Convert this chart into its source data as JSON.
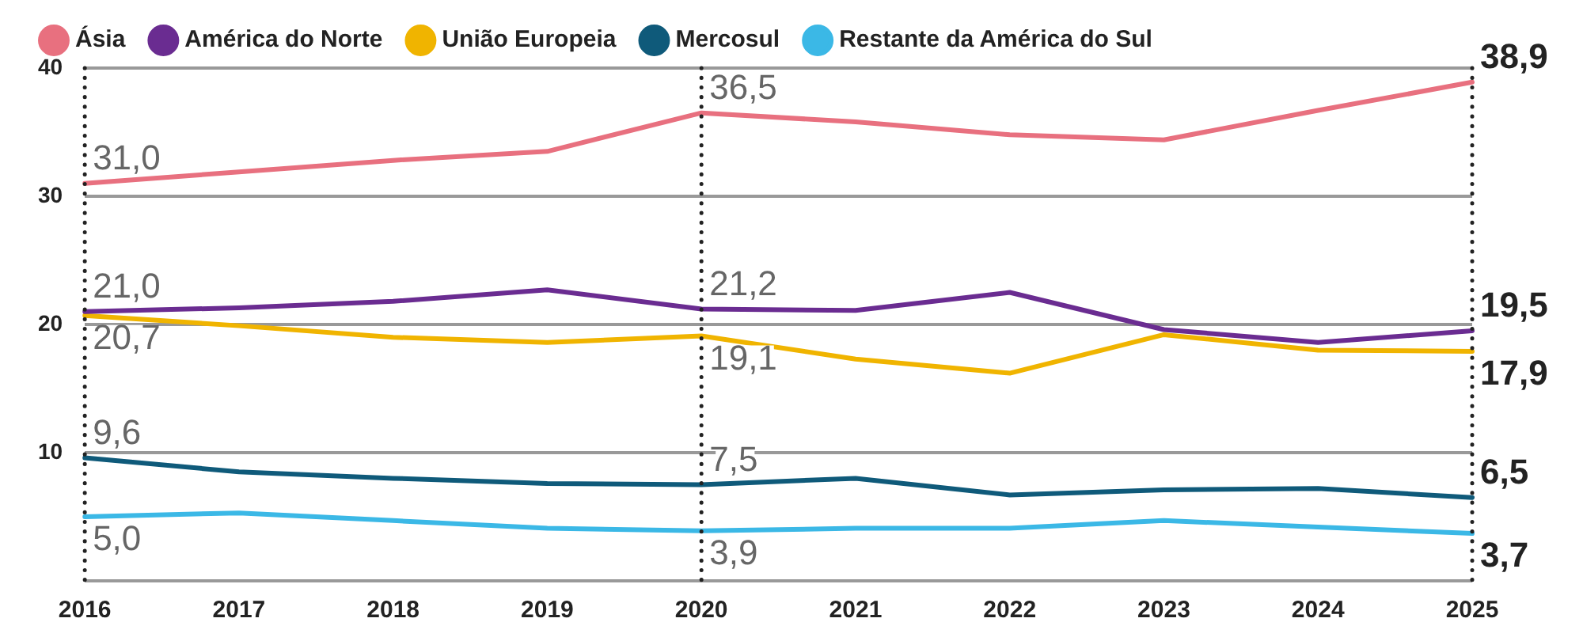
{
  "chart_data": {
    "type": "line",
    "categories": [
      "2016",
      "2017",
      "2018",
      "2019",
      "2020",
      "2021",
      "2022",
      "2023",
      "2024",
      "2025"
    ],
    "series": [
      {
        "name": "Ásia",
        "color": "#e8707f",
        "values": [
          31.0,
          31.9,
          32.8,
          33.5,
          36.5,
          35.8,
          34.8,
          34.4,
          36.7,
          38.9
        ],
        "value_labels": [
          "31,0",
          null,
          null,
          null,
          "36,5",
          null,
          null,
          null,
          null,
          "38,9"
        ]
      },
      {
        "name": "América do Norte",
        "color": "#6a2c91",
        "values": [
          21.0,
          21.3,
          21.8,
          22.7,
          21.2,
          21.1,
          22.5,
          19.6,
          18.6,
          19.5
        ],
        "value_labels": [
          "21,0",
          null,
          null,
          null,
          "21,2",
          null,
          null,
          null,
          null,
          "19,5"
        ]
      },
      {
        "name": "União Europeia",
        "color": "#f0b400",
        "values": [
          20.7,
          19.9,
          19.0,
          18.6,
          19.1,
          17.3,
          16.2,
          19.2,
          18.0,
          17.9
        ],
        "value_labels": [
          "20,7",
          null,
          null,
          null,
          "19,1",
          null,
          null,
          null,
          null,
          "17,9"
        ]
      },
      {
        "name": "Mercosul",
        "color": "#0f5a7a",
        "values": [
          9.6,
          8.5,
          8.0,
          7.6,
          7.5,
          8.0,
          6.7,
          7.1,
          7.2,
          6.5
        ],
        "value_labels": [
          "9,6",
          null,
          null,
          null,
          "7,5",
          null,
          null,
          null,
          null,
          "6,5"
        ]
      },
      {
        "name": "Restante da América do Sul",
        "color": "#3bb8e6",
        "values": [
          5.0,
          5.3,
          4.7,
          4.1,
          3.9,
          4.1,
          4.1,
          4.7,
          4.2,
          3.7
        ],
        "value_labels": [
          "5,0",
          null,
          null,
          null,
          "3,9",
          null,
          null,
          null,
          null,
          "3,7"
        ]
      }
    ],
    "ylim": [
      0,
      40
    ],
    "yticks": [
      {
        "value": 0,
        "label": null
      },
      10,
      20,
      30,
      40
    ],
    "grid": "y",
    "legend": "top left",
    "marker": "none",
    "line_style": "solid",
    "ref_lines": [
      {
        "axis": "x",
        "value": "2016",
        "line_style": "dotted",
        "color": "#222222"
      },
      {
        "axis": "x",
        "value": "2020",
        "line_style": "dotted",
        "color": "#222222"
      },
      {
        "axis": "x",
        "value": "2025",
        "line_style": "dotted",
        "color": "#222222"
      }
    ]
  }
}
